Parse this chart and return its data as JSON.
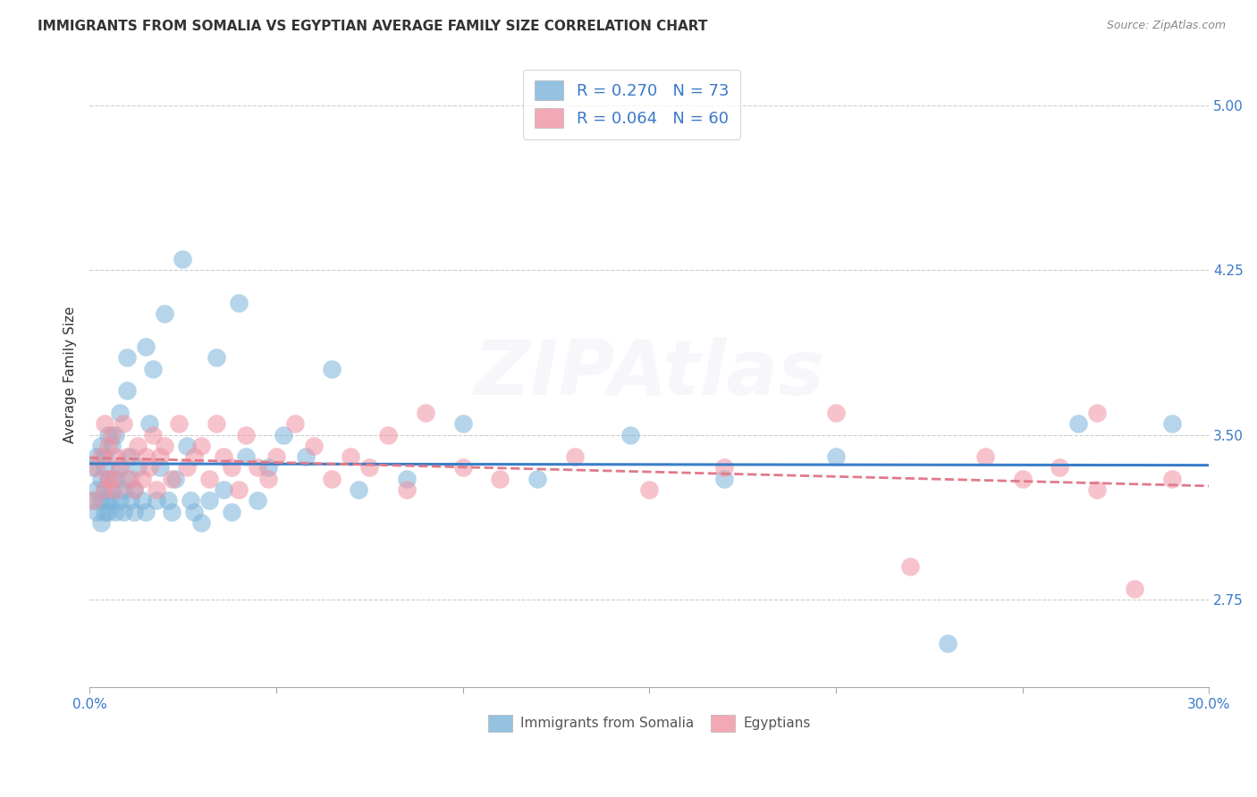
{
  "title": "IMMIGRANTS FROM SOMALIA VS EGYPTIAN AVERAGE FAMILY SIZE CORRELATION CHART",
  "source": "Source: ZipAtlas.com",
  "ylabel": "Average Family Size",
  "yticks": [
    2.75,
    3.5,
    4.25,
    5.0
  ],
  "xlim": [
    0.0,
    0.3
  ],
  "ylim": [
    2.35,
    5.2
  ],
  "watermark": "ZIPAtlas",
  "series1_color": "#7ab3d9",
  "series2_color": "#f093a3",
  "line1_color": "#3a7ec8",
  "line2_color": "#e07a8a",
  "somalia_x": [
    0.001,
    0.001,
    0.002,
    0.002,
    0.002,
    0.003,
    0.003,
    0.003,
    0.003,
    0.004,
    0.004,
    0.004,
    0.004,
    0.005,
    0.005,
    0.005,
    0.005,
    0.006,
    0.006,
    0.006,
    0.007,
    0.007,
    0.007,
    0.008,
    0.008,
    0.008,
    0.009,
    0.009,
    0.01,
    0.01,
    0.01,
    0.011,
    0.011,
    0.012,
    0.012,
    0.013,
    0.014,
    0.015,
    0.015,
    0.016,
    0.017,
    0.018,
    0.019,
    0.02,
    0.021,
    0.022,
    0.023,
    0.025,
    0.026,
    0.027,
    0.028,
    0.03,
    0.032,
    0.034,
    0.036,
    0.038,
    0.04,
    0.042,
    0.045,
    0.048,
    0.052,
    0.058,
    0.065,
    0.072,
    0.085,
    0.1,
    0.12,
    0.145,
    0.17,
    0.2,
    0.23,
    0.265,
    0.29
  ],
  "somalia_y": [
    3.2,
    3.35,
    3.25,
    3.4,
    3.15,
    3.3,
    3.45,
    3.2,
    3.1,
    3.25,
    3.35,
    3.15,
    3.4,
    3.2,
    3.3,
    3.5,
    3.15,
    3.25,
    3.45,
    3.2,
    3.3,
    3.5,
    3.15,
    3.35,
    3.6,
    3.2,
    3.25,
    3.15,
    3.7,
    3.3,
    3.85,
    3.2,
    3.4,
    3.15,
    3.25,
    3.35,
    3.2,
    3.9,
    3.15,
    3.55,
    3.8,
    3.2,
    3.35,
    4.05,
    3.2,
    3.15,
    3.3,
    4.3,
    3.45,
    3.2,
    3.15,
    3.1,
    3.2,
    3.85,
    3.25,
    3.15,
    4.1,
    3.4,
    3.2,
    3.35,
    3.5,
    3.4,
    3.8,
    3.25,
    3.3,
    3.55,
    3.3,
    3.5,
    3.3,
    3.4,
    2.55,
    3.55,
    3.55
  ],
  "egypt_x": [
    0.001,
    0.002,
    0.003,
    0.004,
    0.004,
    0.005,
    0.005,
    0.006,
    0.006,
    0.007,
    0.007,
    0.008,
    0.009,
    0.01,
    0.011,
    0.012,
    0.013,
    0.014,
    0.015,
    0.016,
    0.017,
    0.018,
    0.019,
    0.02,
    0.022,
    0.024,
    0.026,
    0.028,
    0.03,
    0.032,
    0.034,
    0.036,
    0.038,
    0.04,
    0.042,
    0.045,
    0.048,
    0.05,
    0.055,
    0.06,
    0.065,
    0.07,
    0.075,
    0.08,
    0.085,
    0.09,
    0.1,
    0.11,
    0.13,
    0.15,
    0.17,
    0.2,
    0.22,
    0.24,
    0.25,
    0.26,
    0.27,
    0.27,
    0.28,
    0.29
  ],
  "egypt_y": [
    3.2,
    3.35,
    3.4,
    3.25,
    3.55,
    3.3,
    3.45,
    3.5,
    3.3,
    3.4,
    3.25,
    3.35,
    3.55,
    3.4,
    3.3,
    3.25,
    3.45,
    3.3,
    3.4,
    3.35,
    3.5,
    3.25,
    3.4,
    3.45,
    3.3,
    3.55,
    3.35,
    3.4,
    3.45,
    3.3,
    3.55,
    3.4,
    3.35,
    3.25,
    3.5,
    3.35,
    3.3,
    3.4,
    3.55,
    3.45,
    3.3,
    3.4,
    3.35,
    3.5,
    3.25,
    3.6,
    3.35,
    3.3,
    3.4,
    3.25,
    3.35,
    3.6,
    2.9,
    3.4,
    3.3,
    3.35,
    3.6,
    3.25,
    2.8,
    3.3
  ],
  "title_fontsize": 11,
  "tick_fontsize": 11,
  "source_fontsize": 9,
  "legend_fontsize": 13,
  "ylabel_fontsize": 11,
  "watermark_fontsize": 62,
  "watermark_alpha": 0.1,
  "background_color": "#ffffff",
  "plot_bg_color": "#ffffff",
  "grid_color": "#cccccc",
  "tick_label_color": "#3a78c9",
  "title_color": "#333333",
  "legend_label1": "R = 0.270   N = 73",
  "legend_label2": "R = 0.064   N = 60",
  "bottom_label1": "Immigrants from Somalia",
  "bottom_label2": "Egyptians"
}
